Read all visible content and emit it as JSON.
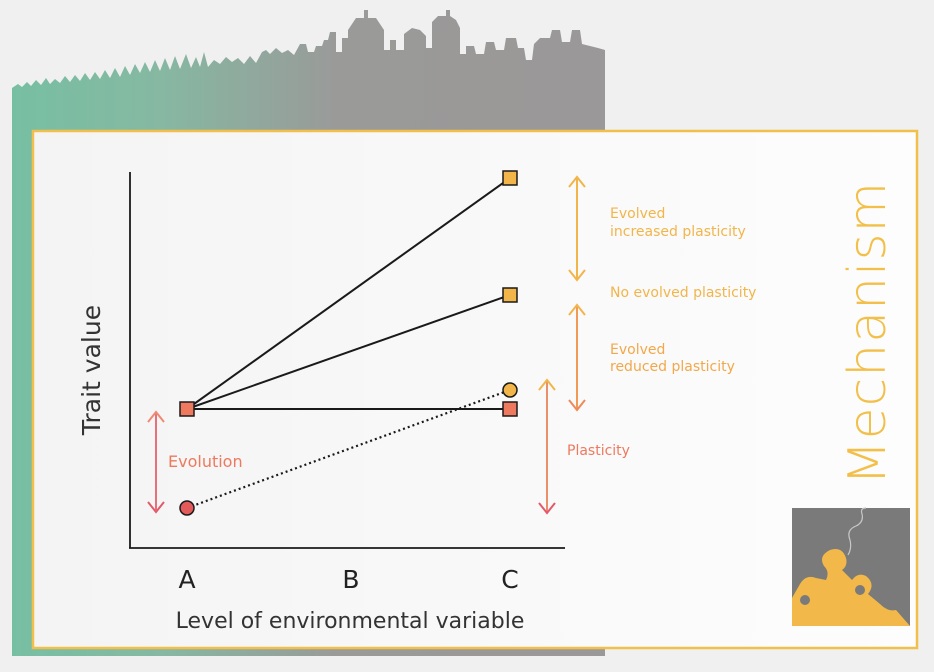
{
  "colors": {
    "background": "#f0f0f0",
    "teal": "#77bfa3",
    "grey": "#9a9898",
    "frame_border": "#f2c04a",
    "orange": "#f2b54a",
    "salmon": "#ed7a5e",
    "red": "#e25a5a",
    "pink_arrow": "#e8707a",
    "line": "#1a1a1a",
    "puzzle_grey": "#7a7a7a",
    "puzzle_yellow": "#f2b84a"
  },
  "chart_data": {
    "type": "line",
    "xlabel": "Level of environmental variable",
    "ylabel": "Trait value",
    "categories": [
      "A",
      "B",
      "C"
    ],
    "series": [
      {
        "marker": "square",
        "color": "#f2b54a",
        "from": "A",
        "to": "C"
      },
      {
        "marker": "square",
        "color": "#f2b54a",
        "from": "A",
        "to": "C"
      },
      {
        "marker": "square",
        "color": "#ed7a5e",
        "from": "A",
        "to": "C"
      },
      {
        "marker": "circle",
        "color": "#e25a5a",
        "end_color": "#f2b54a",
        "from": "A",
        "to": "C",
        "line_style": "dotted"
      }
    ]
  },
  "annotations": {
    "evolution": "Evolution",
    "plasticity": "Plasticity",
    "evolved_increased_line1": "Evolved",
    "evolved_increased_line2": "increased plasticity",
    "no_evolved": "No evolved plasticity",
    "evolved_reduced_line1": "Evolved",
    "evolved_reduced_line2": "reduced plasticity"
  },
  "side_title": "Mechanism",
  "icons": {
    "skyline": "city-skyline-icon",
    "puzzle": "puzzle-icon"
  }
}
